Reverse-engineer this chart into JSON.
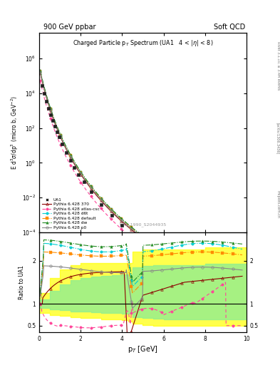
{
  "title_top_left": "900 GeV ppbar",
  "title_top_right": "Soft QCD",
  "plot_title": "Charged Particle p$_T$ Spectrum (UA1   4 < |$\\eta$| < 8)",
  "ylabel_main": "E d$^3\\sigma$/dp$^3$ (micro b, GeV$^{-2}$)",
  "ylabel_ratio": "Ratio to UA1",
  "xlabel": "p$_T$ [GeV]",
  "watermark": "UA1_1990_S2044935",
  "xlim": [
    0,
    10
  ],
  "ylim_main": [
    0.0001,
    30000000.0
  ],
  "ylim_ratio": [
    0.35,
    2.65
  ],
  "ratio_yticks": [
    0.5,
    1.0,
    2.0
  ],
  "ratio_yticklabels": [
    "0.5",
    "1",
    "2"
  ],
  "colors": {
    "ua1": "#222222",
    "py370": "#8B0000",
    "atlas_csc": "#FF4499",
    "d6t": "#00CED1",
    "default": "#FF8C00",
    "dw": "#228B22",
    "p0": "#888888"
  },
  "band_yellow_color": "#FFFF00",
  "band_yellow_alpha": 0.7,
  "band_green_color": "#90EE90",
  "band_green_alpha": 0.8,
  "figsize": [
    3.93,
    5.12
  ],
  "dpi": 100
}
